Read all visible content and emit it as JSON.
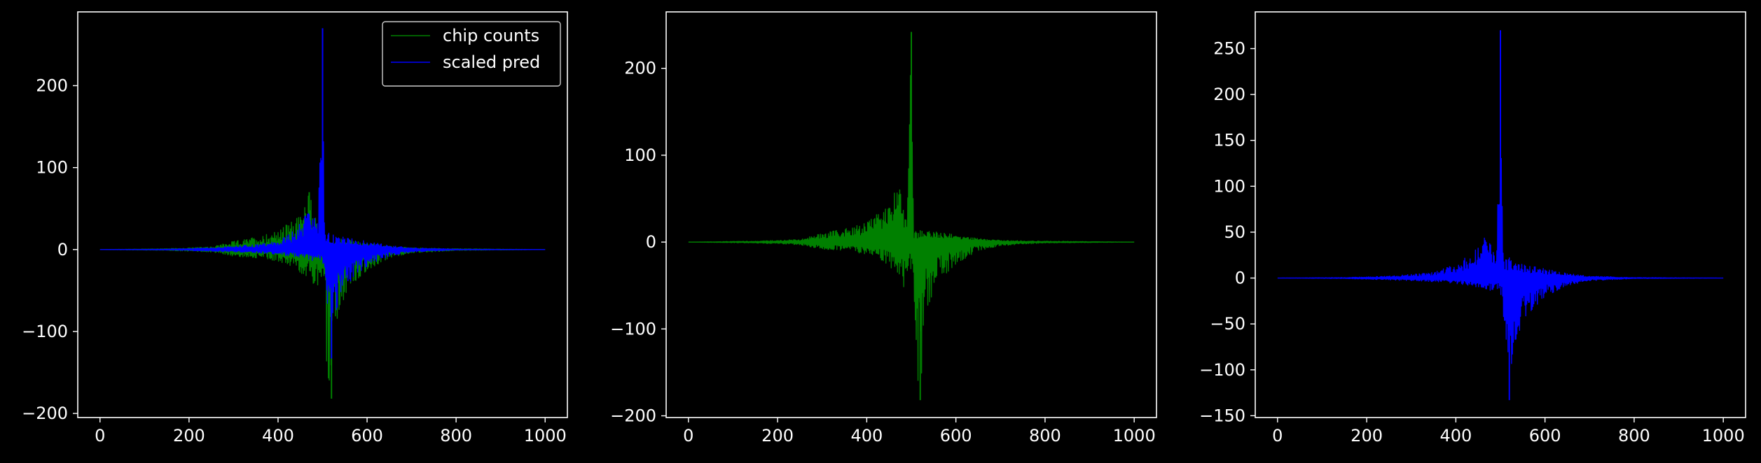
{
  "figure": {
    "background": "#000000",
    "foreground": "#ffffff"
  },
  "chart_data": [
    {
      "type": "line",
      "title": "",
      "xlabel": "",
      "ylabel": "",
      "xlim": [
        -50,
        1050
      ],
      "ylim": [
        -205,
        290
      ],
      "xticks": [
        0,
        200,
        400,
        600,
        800,
        1000
      ],
      "yticks": [
        -200,
        -100,
        0,
        100,
        200
      ],
      "grid": false,
      "legend": {
        "position": "upper right",
        "entries": [
          "chip counts",
          "scaled pred"
        ]
      },
      "series": [
        {
          "name": "chip counts",
          "color": "#008000",
          "x": [
            0,
            150,
            250,
            300,
            350,
            400,
            430,
            450,
            470,
            480,
            490,
            500,
            505,
            510,
            515,
            520,
            525,
            530,
            540,
            560,
            600,
            650,
            700,
            800,
            1000
          ],
          "upper": [
            0,
            1,
            3,
            10,
            15,
            22,
            35,
            40,
            70,
            45,
            28,
            18,
            8,
            12,
            10,
            14,
            12,
            10,
            14,
            12,
            8,
            4,
            2,
            1,
            0
          ],
          "lower": [
            0,
            -1,
            -3,
            -8,
            -10,
            -14,
            -20,
            -28,
            -35,
            -52,
            -45,
            -30,
            -40,
            -160,
            -170,
            -182,
            -130,
            -90,
            -70,
            -45,
            -25,
            -10,
            -4,
            -1,
            0
          ]
        },
        {
          "name": "scaled pred",
          "color": "#0000ff",
          "x": [
            0,
            150,
            250,
            300,
            350,
            400,
            430,
            450,
            470,
            480,
            490,
            500,
            505,
            510,
            515,
            520,
            525,
            530,
            540,
            560,
            600,
            650,
            700,
            800,
            1000
          ],
          "upper": [
            0,
            0.5,
            2,
            4,
            6,
            10,
            20,
            35,
            45,
            40,
            30,
            270,
            30,
            25,
            20,
            22,
            18,
            15,
            16,
            14,
            10,
            5,
            2,
            0.5,
            0
          ],
          "lower": [
            0,
            -0.5,
            -2,
            -3,
            -4,
            -6,
            -8,
            -10,
            -12,
            -14,
            -10,
            -15,
            -30,
            -60,
            -100,
            -133,
            -95,
            -75,
            -60,
            -40,
            -20,
            -8,
            -3,
            -0.5,
            0
          ]
        }
      ]
    },
    {
      "type": "line",
      "title": "",
      "xlabel": "",
      "ylabel": "",
      "xlim": [
        -50,
        1050
      ],
      "ylim": [
        -202,
        265
      ],
      "xticks": [
        0,
        200,
        400,
        600,
        800,
        1000
      ],
      "yticks": [
        -200,
        -100,
        0,
        100,
        200
      ],
      "grid": false,
      "series": [
        {
          "color": "#008000",
          "x": [
            0,
            150,
            250,
            300,
            350,
            400,
            430,
            450,
            470,
            480,
            490,
            500,
            505,
            510,
            515,
            520,
            525,
            530,
            540,
            560,
            600,
            650,
            700,
            800,
            1000
          ],
          "upper": [
            0,
            1,
            3,
            10,
            15,
            22,
            35,
            40,
            70,
            45,
            28,
            242,
            8,
            12,
            10,
            14,
            12,
            10,
            14,
            12,
            8,
            4,
            2,
            1,
            0
          ],
          "lower": [
            0,
            -1,
            -3,
            -8,
            -10,
            -14,
            -20,
            -28,
            -35,
            -55,
            -45,
            -30,
            -40,
            -160,
            -170,
            -182,
            -130,
            -90,
            -70,
            -45,
            -25,
            -10,
            -4,
            -1,
            0
          ]
        }
      ]
    },
    {
      "type": "line",
      "title": "",
      "xlabel": "",
      "ylabel": "",
      "xlim": [
        -50,
        1050
      ],
      "ylim": [
        -152,
        290
      ],
      "xticks": [
        0,
        200,
        400,
        600,
        800,
        1000
      ],
      "yticks": [
        -150,
        -100,
        -50,
        0,
        50,
        100,
        150,
        200,
        250
      ],
      "grid": false,
      "series": [
        {
          "color": "#0000ff",
          "x": [
            0,
            150,
            250,
            300,
            350,
            400,
            430,
            450,
            470,
            480,
            490,
            500,
            505,
            510,
            515,
            520,
            525,
            530,
            540,
            560,
            600,
            650,
            700,
            800,
            1000
          ],
          "upper": [
            0,
            0.5,
            2,
            4,
            6,
            15,
            25,
            40,
            45,
            35,
            28,
            270,
            30,
            25,
            20,
            22,
            18,
            15,
            16,
            14,
            10,
            5,
            2,
            0.5,
            0
          ],
          "lower": [
            0,
            -0.5,
            -2,
            -3,
            -4,
            -6,
            -8,
            -10,
            -12,
            -14,
            -10,
            -15,
            -30,
            -60,
            -100,
            -133,
            -95,
            -75,
            -60,
            -40,
            -20,
            -8,
            -3,
            -0.5,
            0
          ]
        }
      ]
    }
  ]
}
